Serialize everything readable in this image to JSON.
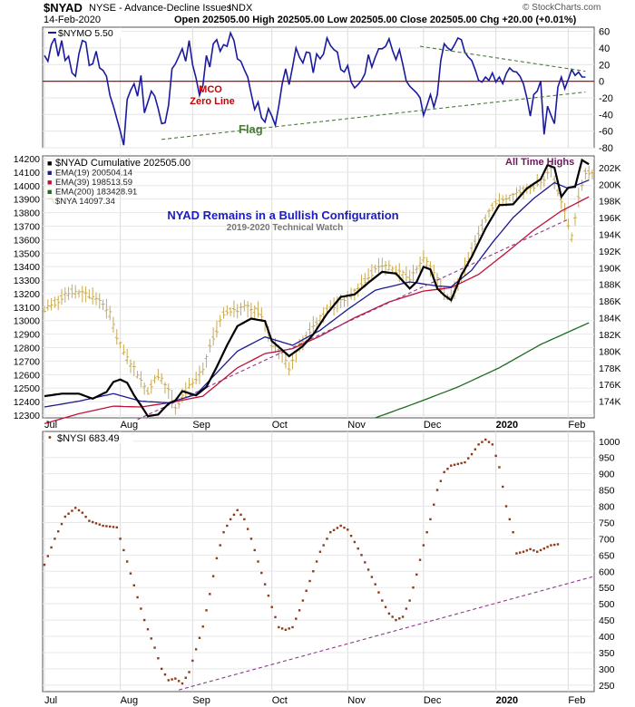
{
  "header": {
    "symbol": "$NYAD",
    "description": "NYSE - Advance-Decline Issues",
    "exchange": "INDX",
    "date": "14-Feb-2020",
    "ohlc_line": "Open 202505.00  High 202505.00  Low 202505.00  Close 202505.00  Chg +20.00 (+0.01%)",
    "watermark": "© StockCharts.com"
  },
  "colors": {
    "nymo": "#1a1aa0",
    "cumulative": "#000000",
    "ema19": "#1a1a8c",
    "ema39": "#c0103a",
    "ema200": "#1d6b1d",
    "nya": "#c8aa50",
    "nysi": "#8b3a1a",
    "trend": "#8a3a8a",
    "flag": "#4a7a3a",
    "zero_line": "#cc0000"
  },
  "chart_data": [
    {
      "type": "line",
      "panel": "top",
      "series": [
        {
          "name": "$NYMO 5.50",
          "last": 5.5
        }
      ],
      "ylim": [
        -80,
        65
      ],
      "y_ticks": [
        60,
        40,
        20,
        0,
        -20,
        -40,
        -60,
        -80
      ],
      "y_tick_labels": [
        "60",
        "40",
        "20",
        "0",
        "-20",
        "-40",
        "-60",
        "-80"
      ],
      "values": [
        31,
        24,
        44,
        52,
        30,
        49,
        25,
        30,
        10,
        6,
        33,
        49,
        47,
        19,
        21,
        36,
        16,
        13,
        6,
        -17,
        -30,
        -45,
        -60,
        -77,
        -22,
        -11,
        -3,
        -18,
        7,
        -38,
        -25,
        -12,
        -18,
        -33,
        -51,
        -50,
        -29,
        15,
        21,
        30,
        39,
        24,
        49,
        20,
        4,
        -17,
        -5,
        31,
        17,
        45,
        50,
        36,
        44,
        42,
        58,
        49,
        27,
        24,
        14,
        5,
        -15,
        -34,
        -25,
        -44,
        -49,
        -33,
        -42,
        -53,
        -30,
        -3,
        15,
        -4,
        17,
        40,
        29,
        22,
        35,
        34,
        10,
        33,
        27,
        33,
        52,
        43,
        38,
        35,
        14,
        11,
        19,
        -1,
        -8,
        -4,
        1,
        9,
        32,
        17,
        29,
        39,
        39,
        42,
        51,
        37,
        26,
        38,
        20,
        0,
        -6,
        -10,
        -14,
        -20,
        -41,
        -29,
        -16,
        -31,
        -16,
        25,
        45,
        40,
        37,
        44,
        52,
        50,
        35,
        29,
        25,
        14,
        1,
        -1,
        5,
        1,
        10,
        -1,
        5,
        -3,
        9,
        16,
        12,
        11,
        6,
        -3,
        -20,
        -42,
        -16,
        -12,
        0,
        -64,
        -30,
        -41,
        -51,
        -7,
        5,
        -9,
        2,
        14,
        7,
        11,
        5,
        5
      ],
      "annotations": [
        "MCO",
        "Zero Line",
        "Flag"
      ],
      "flag_upper": [
        [
          109,
          42
        ],
        [
          157,
          12
        ]
      ],
      "flag_lower": [
        [
          34,
          -70
        ],
        [
          157,
          -13
        ]
      ]
    },
    {
      "type": "line",
      "panel": "middle",
      "title": "NYAD Remains in a Bullish Configuration",
      "subtitle": "2019-2020 Technical Watch",
      "ylim_left": [
        12280,
        14220
      ],
      "ylim_right": [
        172000,
        203400
      ],
      "left_ticks": [
        14200,
        14100,
        14000,
        13900,
        13800,
        13700,
        13600,
        13500,
        13400,
        13300,
        13200,
        13100,
        13000,
        12900,
        12800,
        12700,
        12600,
        12500,
        12400,
        12300
      ],
      "left_tick_labels": [
        "14200",
        "14100",
        "14000",
        "13900",
        "13800",
        "13700",
        "13600",
        "13500",
        "13400",
        "13300",
        "13200",
        "13100",
        "13000",
        "12900",
        "12800",
        "12700",
        "12600",
        "12500",
        "12400",
        "12300"
      ],
      "right_ticks": [
        202000,
        200000,
        198000,
        196000,
        194000,
        192000,
        190000,
        188000,
        186000,
        184000,
        182000,
        180000,
        178000,
        176000,
        174000
      ],
      "right_tick_labels": [
        "202K",
        "200K",
        "198K",
        "196K",
        "194K",
        "192K",
        "190K",
        "188K",
        "186K",
        "184K",
        "182K",
        "180K",
        "178K",
        "176K",
        "174K"
      ],
      "legend": [
        {
          "name": "$NYAD Cumulative 202505.00",
          "marker": "■"
        },
        {
          "name": "EMA(19) 200504.14",
          "marker": "■"
        },
        {
          "name": "EMA(39) 198513.59",
          "marker": "■"
        },
        {
          "name": "EMA(200) 183428.91",
          "marker": "■"
        },
        {
          "name": "$NYA 14097.34",
          "marker": "〽"
        }
      ],
      "annotation": "All Time Highs",
      "cumulative_anchors": [
        [
          0,
          174600
        ],
        [
          5,
          174900
        ],
        [
          10,
          174900
        ],
        [
          14,
          174300
        ],
        [
          18,
          175100
        ],
        [
          20,
          176300
        ],
        [
          22,
          176600
        ],
        [
          24,
          176200
        ],
        [
          26,
          174700
        ],
        [
          28,
          173500
        ],
        [
          30,
          172200
        ],
        [
          33,
          172400
        ],
        [
          36,
          173700
        ],
        [
          38,
          174100
        ],
        [
          40,
          175200
        ],
        [
          44,
          174700
        ],
        [
          47,
          175700
        ],
        [
          50,
          178100
        ],
        [
          53,
          180700
        ],
        [
          56,
          183000
        ],
        [
          60,
          183900
        ],
        [
          64,
          183600
        ],
        [
          66,
          181200
        ],
        [
          68,
          180500
        ],
        [
          71,
          179400
        ],
        [
          75,
          180600
        ],
        [
          78,
          182000
        ],
        [
          82,
          184500
        ],
        [
          86,
          186500
        ],
        [
          90,
          186800
        ],
        [
          94,
          188200
        ],
        [
          98,
          189500
        ],
        [
          102,
          189300
        ],
        [
          106,
          187500
        ],
        [
          108,
          188300
        ],
        [
          110,
          190100
        ],
        [
          112,
          189800
        ],
        [
          114,
          187500
        ],
        [
          116,
          186700
        ],
        [
          118,
          186100
        ],
        [
          121,
          189100
        ],
        [
          124,
          191300
        ],
        [
          128,
          194700
        ],
        [
          132,
          197500
        ],
        [
          136,
          197600
        ],
        [
          140,
          199500
        ],
        [
          144,
          200600
        ],
        [
          146,
          202300
        ],
        [
          148,
          202000
        ],
        [
          150,
          198500
        ],
        [
          152,
          199600
        ],
        [
          154,
          199700
        ],
        [
          156,
          202900
        ],
        [
          158,
          202400
        ]
      ],
      "ema19_anchors": [
        [
          0,
          173300
        ],
        [
          10,
          174000
        ],
        [
          20,
          174900
        ],
        [
          28,
          174000
        ],
        [
          36,
          173800
        ],
        [
          44,
          174800
        ],
        [
          56,
          180000
        ],
        [
          64,
          181700
        ],
        [
          72,
          180700
        ],
        [
          80,
          182500
        ],
        [
          88,
          185000
        ],
        [
          96,
          187300
        ],
        [
          106,
          188300
        ],
        [
          114,
          187800
        ],
        [
          118,
          187700
        ],
        [
          124,
          189700
        ],
        [
          130,
          193000
        ],
        [
          136,
          196000
        ],
        [
          142,
          198300
        ],
        [
          148,
          200200
        ],
        [
          152,
          199500
        ],
        [
          158,
          200500
        ]
      ],
      "ema39_anchors": [
        [
          0,
          171300
        ],
        [
          10,
          172500
        ],
        [
          20,
          173400
        ],
        [
          28,
          173300
        ],
        [
          36,
          173800
        ],
        [
          46,
          174600
        ],
        [
          56,
          178000
        ],
        [
          64,
          179700
        ],
        [
          72,
          180300
        ],
        [
          80,
          181800
        ],
        [
          90,
          184000
        ],
        [
          100,
          185900
        ],
        [
          110,
          187200
        ],
        [
          118,
          187600
        ],
        [
          126,
          189200
        ],
        [
          134,
          191800
        ],
        [
          142,
          194500
        ],
        [
          150,
          196800
        ],
        [
          158,
          198500
        ]
      ],
      "ema200_anchors": [
        [
          96,
          172000
        ],
        [
          108,
          173800
        ],
        [
          120,
          175700
        ],
        [
          132,
          178000
        ],
        [
          144,
          180800
        ],
        [
          158,
          183400
        ]
      ],
      "nya_anchors": [
        [
          0,
          13080
        ],
        [
          8,
          13220
        ],
        [
          12,
          13200
        ],
        [
          16,
          13160
        ],
        [
          19,
          13050
        ],
        [
          21,
          12870
        ],
        [
          24,
          12720
        ],
        [
          27,
          12600
        ],
        [
          30,
          12470
        ],
        [
          33,
          12600
        ],
        [
          36,
          12480
        ],
        [
          38,
          12350
        ],
        [
          42,
          12520
        ],
        [
          46,
          12630
        ],
        [
          48,
          12820
        ],
        [
          50,
          12930
        ],
        [
          52,
          13060
        ],
        [
          55,
          13080
        ],
        [
          58,
          13100
        ],
        [
          62,
          13070
        ],
        [
          64,
          12980
        ],
        [
          66,
          12820
        ],
        [
          69,
          12750
        ],
        [
          71,
          12650
        ],
        [
          73,
          12760
        ],
        [
          75,
          12850
        ],
        [
          78,
          12960
        ],
        [
          82,
          13080
        ],
        [
          86,
          13140
        ],
        [
          90,
          13210
        ],
        [
          94,
          13330
        ],
        [
          98,
          13420
        ],
        [
          102,
          13370
        ],
        [
          106,
          13320
        ],
        [
          110,
          13450
        ],
        [
          113,
          13360
        ],
        [
          116,
          13180
        ],
        [
          118,
          13170
        ],
        [
          121,
          13330
        ],
        [
          124,
          13520
        ],
        [
          127,
          13700
        ],
        [
          130,
          13850
        ],
        [
          134,
          13900
        ],
        [
          138,
          13950
        ],
        [
          142,
          14000
        ],
        [
          145,
          14040
        ],
        [
          147,
          14120
        ],
        [
          149,
          13950
        ],
        [
          151,
          13800
        ],
        [
          153,
          13620
        ],
        [
          155,
          13910
        ],
        [
          157,
          14100
        ],
        [
          159,
          14097
        ]
      ],
      "trend_line": [
        [
          27,
          171800
        ],
        [
          152,
          195800
        ]
      ],
      "x_tick_labels": [
        "Jul",
        "Aug",
        "Sep",
        "Oct",
        "Nov",
        "Dec",
        "2020",
        "Feb"
      ],
      "x_tick_positions": [
        0,
        22,
        43,
        66,
        88,
        110,
        131,
        152
      ]
    },
    {
      "type": "scatter",
      "panel": "bottom",
      "series": [
        {
          "name": "$NYSI 683.49",
          "last": 683.49
        }
      ],
      "ylim": [
        230,
        1030
      ],
      "y_ticks": [
        1000,
        950,
        900,
        850,
        800,
        750,
        700,
        650,
        600,
        550,
        500,
        450,
        400,
        350,
        300,
        250
      ],
      "y_tick_labels": [
        "1000",
        "950",
        "900",
        "850",
        "800",
        "750",
        "700",
        "650",
        "600",
        "550",
        "500",
        "450",
        "400",
        "350",
        "300",
        "250"
      ],
      "anchors": [
        [
          0,
          620
        ],
        [
          3,
          700
        ],
        [
          6,
          768
        ],
        [
          9,
          795
        ],
        [
          11,
          780
        ],
        [
          13,
          755
        ],
        [
          17,
          740
        ],
        [
          21,
          735
        ],
        [
          24,
          630
        ],
        [
          27,
          520
        ],
        [
          29,
          450
        ],
        [
          32,
          365
        ],
        [
          34,
          300
        ],
        [
          36,
          265
        ],
        [
          38,
          270
        ],
        [
          40,
          255
        ],
        [
          42,
          290
        ],
        [
          44,
          360
        ],
        [
          46,
          430
        ],
        [
          48,
          530
        ],
        [
          50,
          640
        ],
        [
          52,
          720
        ],
        [
          54,
          760
        ],
        [
          56,
          788
        ],
        [
          58,
          760
        ],
        [
          60,
          700
        ],
        [
          62,
          630
        ],
        [
          64,
          560
        ],
        [
          66,
          490
        ],
        [
          68,
          428
        ],
        [
          70,
          420
        ],
        [
          72,
          428
        ],
        [
          74,
          480
        ],
        [
          77,
          570
        ],
        [
          80,
          660
        ],
        [
          83,
          720
        ],
        [
          86,
          740
        ],
        [
          88,
          728
        ],
        [
          90,
          690
        ],
        [
          92,
          650
        ],
        [
          94,
          605
        ],
        [
          96,
          560
        ],
        [
          98,
          510
        ],
        [
          100,
          470
        ],
        [
          102,
          450
        ],
        [
          104,
          460
        ],
        [
          106,
          510
        ],
        [
          108,
          590
        ],
        [
          110,
          680
        ],
        [
          112,
          760
        ],
        [
          114,
          850
        ],
        [
          116,
          905
        ],
        [
          118,
          925
        ],
        [
          120,
          930
        ],
        [
          122,
          935
        ],
        [
          124,
          960
        ],
        [
          126,
          990
        ],
        [
          128,
          1005
        ],
        [
          130,
          990
        ],
        [
          132,
          920
        ],
        [
          134,
          800
        ],
        [
          136,
          720
        ],
        [
          137,
          655
        ],
        [
          139,
          660
        ],
        [
          141,
          668
        ],
        [
          143,
          660
        ],
        [
          145,
          670
        ],
        [
          147,
          680
        ],
        [
          149,
          683
        ]
      ],
      "trend_line": [
        [
          39,
          235
        ],
        [
          159,
          583
        ]
      ],
      "x_tick_labels": [
        "Jul",
        "Aug",
        "Sep",
        "Oct",
        "Nov",
        "Dec",
        "2020",
        "Feb"
      ],
      "x_tick_positions": [
        0,
        22,
        43,
        66,
        88,
        110,
        131,
        152
      ]
    }
  ]
}
